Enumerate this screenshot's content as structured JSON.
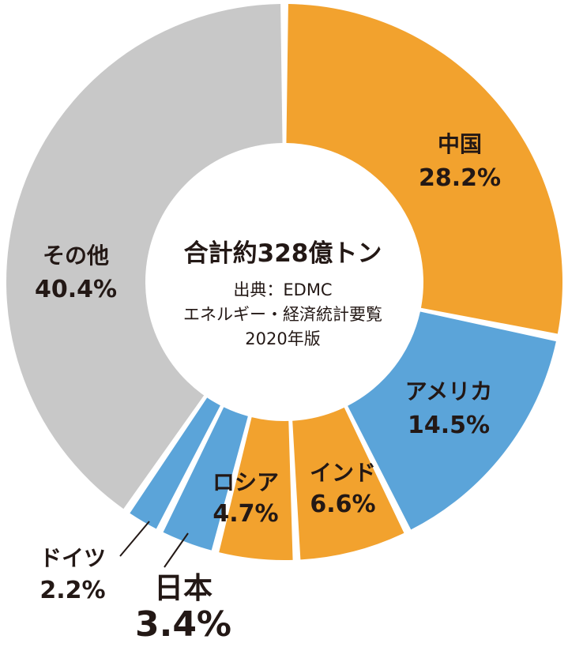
{
  "chart_data": {
    "type": "pie",
    "categories": [
      "中国",
      "アメリカ",
      "インド",
      "ロシア",
      "日本",
      "ドイツ",
      "その他"
    ],
    "values": [
      28.2,
      14.5,
      6.6,
      4.7,
      3.4,
      2.2,
      40.4
    ],
    "value_labels": [
      "28.2%",
      "14.5%",
      "6.6%",
      "4.7%",
      "3.4%",
      "2.2%",
      "40.4%"
    ],
    "colors": [
      "#F2A22E",
      "#5BA4D9",
      "#F2A22E",
      "#F2A22E",
      "#5BA4D9",
      "#5BA4D9",
      "#C8C8C8"
    ],
    "center_title": "合計約328億トン",
    "center_source": [
      "出典：EDMC",
      "エネルギー・経済統計要覧",
      "2020年版"
    ]
  }
}
